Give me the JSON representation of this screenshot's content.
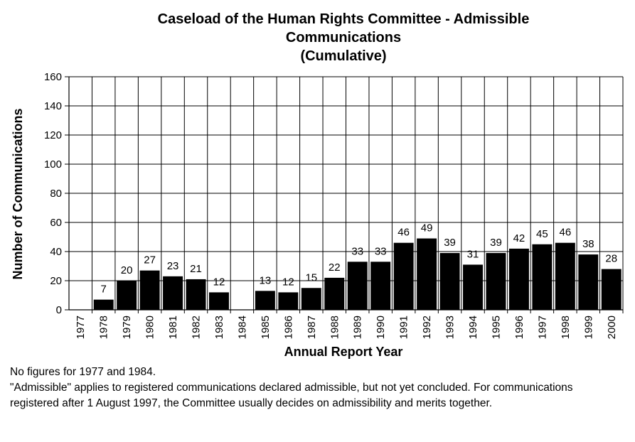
{
  "chart_data": {
    "type": "bar",
    "title_lines": [
      "Caseload of the Human Rights Committee - Admissible",
      "Communications",
      "(Cumulative)"
    ],
    "xlabel": "Annual Report Year",
    "ylabel": "Number of Communications",
    "ylim": [
      0,
      160
    ],
    "yticks": [
      0,
      20,
      40,
      60,
      80,
      100,
      120,
      140,
      160
    ],
    "grid": true,
    "categories": [
      "1977",
      "1978",
      "1979",
      "1980",
      "1981",
      "1982",
      "1983",
      "1984",
      "1985",
      "1986",
      "1987",
      "1988",
      "1989",
      "1990",
      "1991",
      "1992",
      "1993",
      "1994",
      "1995",
      "1996",
      "1997",
      "1998",
      "1999",
      "2000"
    ],
    "values": [
      null,
      7,
      20,
      27,
      23,
      21,
      12,
      null,
      13,
      12,
      15,
      22,
      33,
      33,
      46,
      49,
      39,
      31,
      39,
      42,
      45,
      46,
      38,
      28
    ],
    "bar_color": "#000000"
  },
  "notes": [
    "No figures for 1977 and 1984.",
    "\"Admissible\" applies to registered communications declared admissible, but not yet concluded. For communications registered after 1 August 1997, the Committee usually decides on admissibility and merits together."
  ]
}
